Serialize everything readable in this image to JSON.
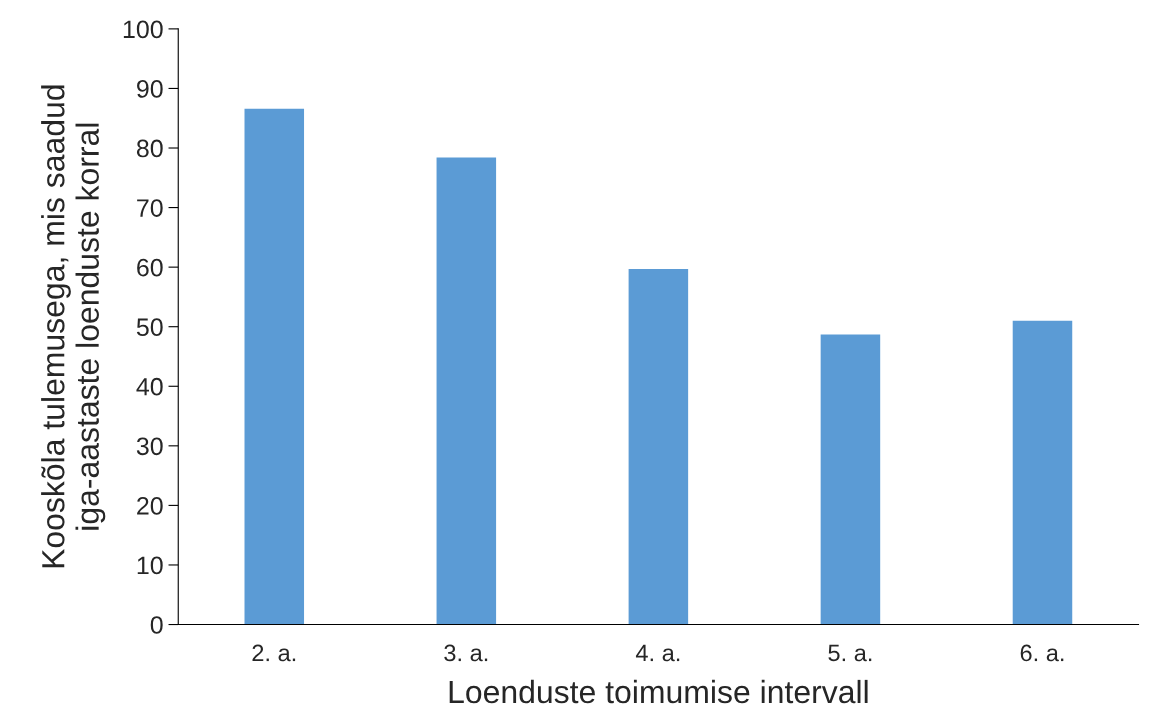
{
  "chart_data": {
    "type": "bar",
    "xlabel": "Loenduste toimumise intervall",
    "ylabel": "Kooskõla tulemusega, mis saadud\niga-aastaste loenduste korral",
    "categories": [
      "2. a.",
      "3. a.",
      "4. a.",
      "5. a.",
      "6. a."
    ],
    "values": [
      86.6,
      78.4,
      59.7,
      48.7,
      51.0
    ],
    "color": "#5b9bd5",
    "ylim": [
      0,
      100
    ],
    "yticks": [
      0,
      10,
      20,
      30,
      40,
      50,
      60,
      70,
      80,
      90,
      100
    ],
    "grid": false,
    "legend": false
  }
}
